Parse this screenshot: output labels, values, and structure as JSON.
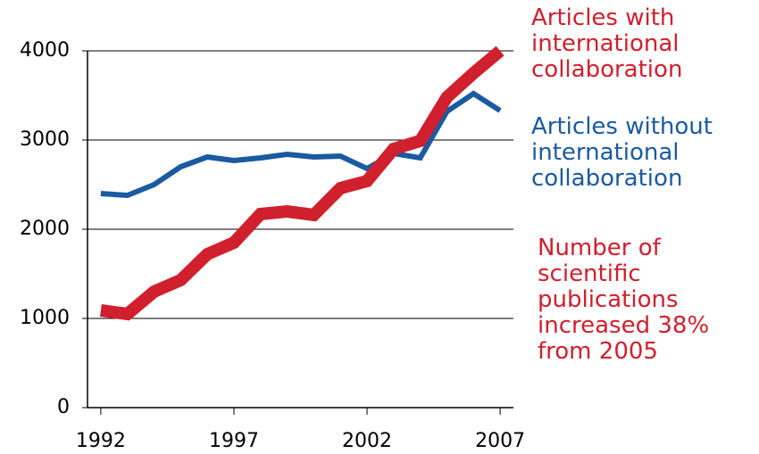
{
  "chart_data": {
    "type": "line",
    "x": [
      1992,
      1993,
      1994,
      1995,
      1996,
      1997,
      1998,
      1999,
      2000,
      2001,
      2002,
      2003,
      2004,
      2005,
      2006,
      2007
    ],
    "series": [
      {
        "name": "Articles without international collaboration",
        "color": "#1a5aa0",
        "values": [
          2400,
          2380,
          2500,
          2700,
          2810,
          2770,
          2800,
          2840,
          2810,
          2820,
          2680,
          2850,
          2800,
          3320,
          3520,
          3330
        ]
      },
      {
        "name": "Articles with international collaboration",
        "color": "#d0202e",
        "values": [
          1090,
          1050,
          1300,
          1430,
          1720,
          1850,
          2170,
          2200,
          2160,
          2460,
          2540,
          2900,
          2990,
          3480,
          3750,
          4000
        ]
      }
    ],
    "xlim": [
      1991.5,
      2007.5
    ],
    "xticks": [
      1992,
      1997,
      2002,
      2007
    ],
    "ylim": [
      0,
      4000
    ],
    "yticks": [
      0,
      1000,
      2000,
      3000,
      4000
    ],
    "grid": true,
    "annotation": "Number of scientific publications increased 38% from 2005"
  }
}
